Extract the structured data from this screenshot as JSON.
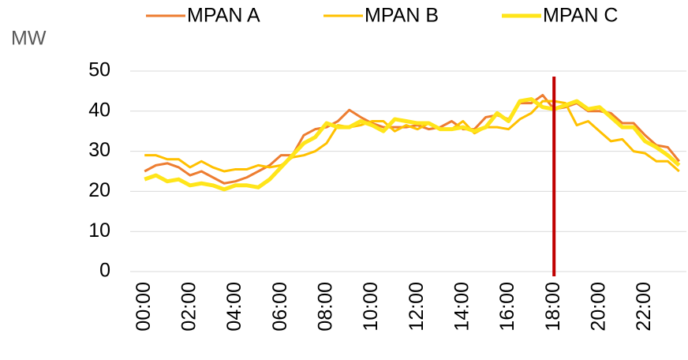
{
  "chart_data": {
    "type": "line",
    "y_label": "MW",
    "categories": [
      "00:00",
      null,
      null,
      null,
      "02:00",
      null,
      null,
      null,
      "04:00",
      null,
      null,
      null,
      "06:00",
      null,
      null,
      null,
      "08:00",
      null,
      null,
      null,
      "10:00",
      null,
      null,
      null,
      "12:00",
      null,
      null,
      null,
      "14:00",
      null,
      null,
      null,
      "16:00",
      null,
      null,
      null,
      "18:00",
      null,
      null,
      null,
      "20:00",
      null,
      null,
      null,
      "22:00",
      null,
      null,
      null
    ],
    "series": [
      {
        "name": "MPAN A",
        "color": "#ed7d31",
        "width": 3,
        "values": [
          25,
          26.5,
          27,
          26,
          24,
          25,
          23.5,
          22,
          22.5,
          23.5,
          25,
          26.5,
          29,
          29,
          34,
          35.5,
          36,
          37.5,
          40.3,
          38.5,
          37,
          36,
          36,
          36,
          36.5,
          35.5,
          36,
          37.5,
          35.5,
          35.5,
          38.5,
          39,
          38,
          42,
          42,
          44,
          40.5,
          41,
          42,
          40,
          40,
          39.5,
          37,
          37,
          34,
          31.5,
          31,
          27.5
        ]
      },
      {
        "name": "MPAN B",
        "color": "#ffc000",
        "width": 3,
        "values": [
          29,
          29,
          28,
          28,
          26,
          27.5,
          26,
          25,
          25.5,
          25.5,
          26.5,
          26,
          26.5,
          28.5,
          29,
          30,
          32,
          36.5,
          36,
          36.5,
          37.5,
          37.5,
          35,
          36.5,
          35.5,
          37,
          35.5,
          35.5,
          37.5,
          34.5,
          36,
          36,
          35.5,
          38,
          39.5,
          42.5,
          42.5,
          42,
          36.5,
          37.5,
          35,
          32.5,
          33,
          30,
          29.5,
          27.5,
          27.5,
          25
        ]
      },
      {
        "name": "MPAN C",
        "color": "#ffe51a",
        "width": 5,
        "values": [
          23,
          24,
          22.5,
          23,
          21.5,
          22,
          21.5,
          20.5,
          21.5,
          21.5,
          21,
          23,
          26,
          29,
          32,
          33.5,
          37,
          36,
          36,
          37.5,
          36.5,
          35,
          38,
          37.5,
          37,
          37,
          35.5,
          35.5,
          36,
          35,
          36,
          39.5,
          37.5,
          42.5,
          43,
          41,
          40.5,
          41.5,
          42.5,
          40.5,
          41,
          38.5,
          36,
          36,
          32.5,
          31,
          29,
          26.5
        ]
      }
    ],
    "vline": {
      "category": "18:00",
      "color": "#c00000"
    },
    "ylim": [
      0,
      50
    ],
    "yticks": [
      0,
      10,
      20,
      30,
      40,
      50
    ],
    "grid": true,
    "legend": "top"
  }
}
